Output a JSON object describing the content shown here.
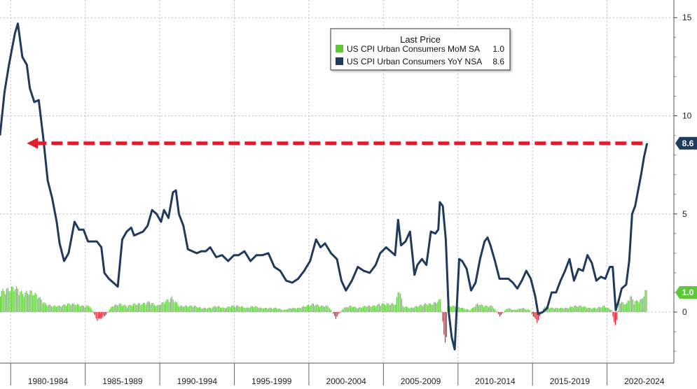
{
  "chart_data": {
    "type": "line+bar",
    "legend_title": "Last Price",
    "legend_position": "top-center",
    "y_ticks": [
      15,
      10,
      5,
      0
    ],
    "ylim": [
      -2.6,
      15.9
    ],
    "x_labels": [
      "1980-1984",
      "1985-1989",
      "1990-1994",
      "1995-1999",
      "2000-2004",
      "2005-2009",
      "2010-2014",
      "2015-2019",
      "2020-2024"
    ],
    "x_range": [
      1979.0,
      2024.2
    ],
    "grid": true,
    "series": [
      {
        "name": "US CPI Urban Consumers MoM SA",
        "last": "1.0",
        "type": "bar",
        "color_pos": "#5cc83a",
        "color_neg": "#e8182b",
        "x": [
          1979.0,
          1979.5,
          1980.0,
          1980.5,
          1981.0,
          1981.5,
          1982.0,
          1982.5,
          1983.0,
          1983.5,
          1984.0,
          1984.5,
          1985.0,
          1985.5,
          1986.0,
          1986.5,
          1987.0,
          1987.5,
          1988.0,
          1988.5,
          1989.0,
          1989.5,
          1990.0,
          1990.5,
          1991.0,
          1991.5,
          1992.0,
          1992.5,
          1993.0,
          1993.5,
          1994.0,
          1994.5,
          1995.0,
          1995.5,
          1996.0,
          1996.5,
          1997.0,
          1997.5,
          1998.0,
          1998.5,
          1999.0,
          1999.5,
          2000.0,
          2000.5,
          2001.0,
          2001.5,
          2002.0,
          2002.5,
          2003.0,
          2003.5,
          2004.0,
          2004.5,
          2005.0,
          2005.5,
          2005.75,
          2006.0,
          2006.5,
          2007.0,
          2007.5,
          2008.0,
          2008.25,
          2008.5,
          2008.75,
          2008.9,
          2009.0,
          2009.5,
          2010.0,
          2010.5,
          2011.0,
          2011.5,
          2012.0,
          2012.5,
          2013.0,
          2013.5,
          2014.0,
          2014.5,
          2015.0,
          2015.5,
          2016.0,
          2016.5,
          2017.0,
          2017.5,
          2018.0,
          2018.5,
          2019.0,
          2019.5,
          2020.0,
          2020.25,
          2020.5,
          2021.0,
          2021.25,
          2021.5,
          2022.0,
          2022.25,
          2022.4
        ],
        "values": [
          1.0,
          1.1,
          1.2,
          0.9,
          1.0,
          0.8,
          0.4,
          0.3,
          0.3,
          0.4,
          0.4,
          0.3,
          0.3,
          -0.4,
          -0.2,
          0.3,
          0.4,
          0.3,
          0.4,
          0.4,
          0.5,
          0.3,
          0.5,
          0.7,
          0.3,
          0.3,
          0.3,
          0.2,
          0.2,
          0.3,
          0.2,
          0.3,
          0.3,
          0.2,
          0.3,
          0.2,
          0.2,
          0.2,
          0.1,
          0.2,
          0.2,
          0.3,
          0.4,
          0.3,
          0.3,
          -0.3,
          0.2,
          0.3,
          0.2,
          0.3,
          0.3,
          0.4,
          0.4,
          0.4,
          1.2,
          0.3,
          0.2,
          0.3,
          0.4,
          0.4,
          0.5,
          0.6,
          -1.0,
          -1.9,
          0.3,
          0.3,
          0.2,
          0.1,
          0.4,
          0.3,
          0.3,
          -0.2,
          0.2,
          0.1,
          0.2,
          0.1,
          -0.5,
          0.3,
          0.2,
          0.2,
          0.2,
          0.3,
          0.3,
          0.2,
          0.2,
          0.3,
          0.1,
          -0.8,
          0.5,
          0.4,
          0.8,
          0.5,
          0.6,
          1.0,
          1.0
        ]
      },
      {
        "name": "US CPI Urban Consumers YoY NSA",
        "last": "8.6",
        "type": "line",
        "color": "#1f3a5c",
        "x": [
          1979.0,
          1979.3,
          1979.6,
          1980.0,
          1980.2,
          1980.5,
          1980.8,
          1981.0,
          1981.3,
          1981.6,
          1981.9,
          1982.2,
          1982.5,
          1982.8,
          1983.0,
          1983.3,
          1983.6,
          1984.0,
          1984.3,
          1984.6,
          1984.9,
          1985.2,
          1985.5,
          1985.8,
          1986.0,
          1986.3,
          1986.6,
          1986.9,
          1987.2,
          1987.5,
          1987.8,
          1988.0,
          1988.3,
          1988.6,
          1988.9,
          1989.2,
          1989.5,
          1989.8,
          1990.0,
          1990.3,
          1990.6,
          1990.8,
          1991.0,
          1991.3,
          1991.6,
          1991.9,
          1992.2,
          1992.5,
          1992.8,
          1993.1,
          1993.5,
          1993.9,
          1994.3,
          1994.7,
          1995.0,
          1995.4,
          1995.8,
          1996.2,
          1996.6,
          1997.0,
          1997.4,
          1997.8,
          1998.2,
          1998.6,
          1999.0,
          1999.4,
          1999.8,
          2000.2,
          2000.5,
          2000.8,
          2001.2,
          2001.6,
          2001.9,
          2002.2,
          2002.6,
          2003.0,
          2003.4,
          2003.8,
          2004.2,
          2004.5,
          2004.9,
          2005.2,
          2005.5,
          2005.7,
          2005.9,
          2006.2,
          2006.5,
          2006.8,
          2007.0,
          2007.3,
          2007.6,
          2007.9,
          2008.2,
          2008.4,
          2008.5,
          2008.7,
          2008.9,
          2009.1,
          2009.3,
          2009.5,
          2009.8,
          2010.0,
          2010.3,
          2010.6,
          2010.9,
          2011.2,
          2011.5,
          2011.7,
          2011.9,
          2012.2,
          2012.5,
          2012.8,
          2013.1,
          2013.4,
          2013.7,
          2014.0,
          2014.3,
          2014.6,
          2014.9,
          2015.1,
          2015.4,
          2015.7,
          2016.0,
          2016.3,
          2016.6,
          2016.9,
          2017.2,
          2017.5,
          2017.8,
          2018.1,
          2018.4,
          2018.7,
          2019.0,
          2019.3,
          2019.6,
          2019.9,
          2020.1,
          2020.3,
          2020.5,
          2020.7,
          2021.0,
          2021.2,
          2021.4,
          2021.6,
          2021.8,
          2022.0,
          2022.2,
          2022.4
        ],
        "values": [
          9.0,
          11.2,
          12.6,
          14.2,
          14.7,
          13.0,
          12.6,
          11.4,
          10.7,
          10.8,
          8.9,
          6.7,
          5.8,
          4.6,
          3.5,
          2.6,
          3.0,
          4.6,
          4.2,
          4.2,
          3.6,
          3.6,
          3.6,
          3.3,
          2.0,
          1.7,
          1.5,
          1.3,
          3.7,
          4.1,
          4.3,
          3.9,
          4.0,
          4.1,
          4.4,
          5.2,
          5.0,
          4.6,
          5.2,
          4.8,
          6.1,
          6.2,
          5.0,
          4.4,
          3.2,
          3.1,
          3.0,
          3.1,
          3.1,
          3.3,
          2.8,
          2.9,
          2.6,
          2.9,
          2.9,
          3.1,
          2.6,
          2.9,
          2.9,
          3.0,
          2.3,
          2.1,
          1.6,
          1.5,
          1.7,
          2.1,
          2.6,
          3.7,
          3.3,
          3.5,
          3.0,
          2.7,
          1.6,
          1.1,
          1.6,
          2.3,
          2.1,
          2.0,
          2.4,
          3.0,
          3.3,
          3.1,
          2.9,
          4.7,
          3.4,
          3.6,
          4.1,
          1.9,
          2.4,
          2.7,
          2.4,
          4.1,
          4.0,
          4.2,
          5.6,
          5.4,
          3.7,
          0.0,
          -1.3,
          -1.9,
          2.7,
          2.6,
          2.2,
          1.1,
          1.5,
          2.7,
          3.6,
          3.8,
          3.4,
          2.6,
          1.7,
          1.7,
          1.7,
          1.5,
          1.2,
          1.6,
          2.1,
          1.7,
          0.8,
          -0.1,
          0.0,
          0.2,
          1.0,
          1.0,
          1.6,
          2.1,
          2.7,
          1.6,
          2.2,
          2.1,
          2.9,
          2.5,
          1.6,
          1.8,
          1.7,
          2.3,
          2.3,
          0.1,
          0.6,
          1.2,
          1.4,
          2.6,
          5.0,
          5.4,
          6.2,
          7.0,
          7.9,
          8.6
        ]
      }
    ],
    "annotations": [
      {
        "label": "8.6",
        "series": 1,
        "color": "#1f3a5c"
      },
      {
        "label": "1.0",
        "series": 0,
        "color": "#5cc83a"
      }
    ],
    "reference_line": {
      "value": 8.6,
      "from_x": 1980.8,
      "to_x": 2022.4,
      "style": "dashed-arrow",
      "color": "#e8182b"
    }
  }
}
